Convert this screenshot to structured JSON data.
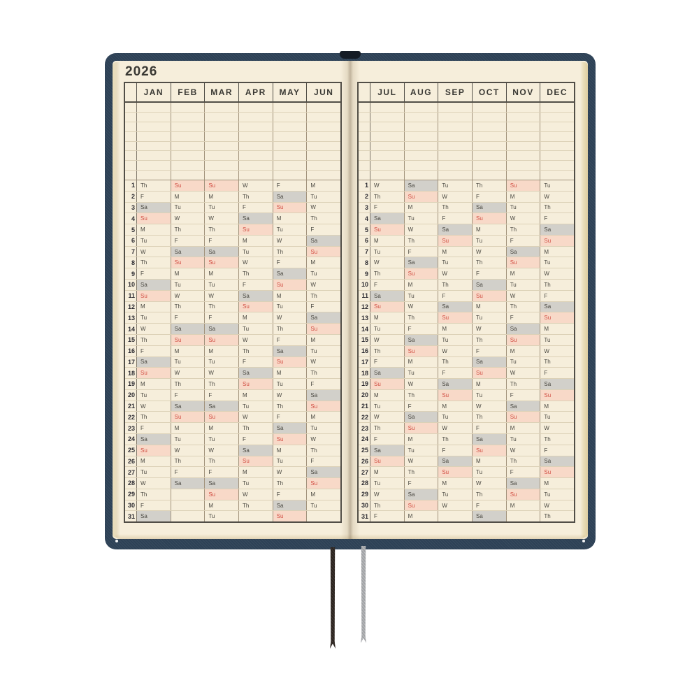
{
  "calendar": {
    "year": "2026",
    "highlight": {
      "sunday_abbr": "Su",
      "saturday_abbr": "Sa"
    },
    "day_numbers": [
      "1",
      "2",
      "3",
      "4",
      "5",
      "6",
      "7",
      "8",
      "9",
      "10",
      "11",
      "12",
      "13",
      "14",
      "15",
      "16",
      "17",
      "18",
      "19",
      "20",
      "21",
      "22",
      "23",
      "24",
      "25",
      "26",
      "27",
      "28",
      "29",
      "30",
      "31"
    ],
    "pages": [
      {
        "side": "left",
        "months": [
          {
            "label": "JAN",
            "weekdays": [
              "Th",
              "F",
              "Sa",
              "Su",
              "M",
              "Tu",
              "W",
              "Th",
              "F",
              "Sa",
              "Su",
              "M",
              "Tu",
              "W",
              "Th",
              "F",
              "Sa",
              "Su",
              "M",
              "Tu",
              "W",
              "Th",
              "F",
              "Sa",
              "Su",
              "M",
              "Tu",
              "W",
              "Th",
              "F",
              "Sa"
            ]
          },
          {
            "label": "FEB",
            "weekdays": [
              "Su",
              "M",
              "Tu",
              "W",
              "Th",
              "F",
              "Sa",
              "Su",
              "M",
              "Tu",
              "W",
              "Th",
              "F",
              "Sa",
              "Su",
              "M",
              "Tu",
              "W",
              "Th",
              "F",
              "Sa",
              "Su",
              "M",
              "Tu",
              "W",
              "Th",
              "F",
              "Sa",
              "",
              "",
              ""
            ]
          },
          {
            "label": "MAR",
            "weekdays": [
              "Su",
              "M",
              "Tu",
              "W",
              "Th",
              "F",
              "Sa",
              "Su",
              "M",
              "Tu",
              "W",
              "Th",
              "F",
              "Sa",
              "Su",
              "M",
              "Tu",
              "W",
              "Th",
              "F",
              "Sa",
              "Su",
              "M",
              "Tu",
              "W",
              "Th",
              "F",
              "Sa",
              "Su",
              "M",
              "Tu"
            ]
          },
          {
            "label": "APR",
            "weekdays": [
              "W",
              "Th",
              "F",
              "Sa",
              "Su",
              "M",
              "Tu",
              "W",
              "Th",
              "F",
              "Sa",
              "Su",
              "M",
              "Tu",
              "W",
              "Th",
              "F",
              "Sa",
              "Su",
              "M",
              "Tu",
              "W",
              "Th",
              "F",
              "Sa",
              "Su",
              "M",
              "Tu",
              "W",
              "Th",
              ""
            ]
          },
          {
            "label": "MAY",
            "weekdays": [
              "F",
              "Sa",
              "Su",
              "M",
              "Tu",
              "W",
              "Th",
              "F",
              "Sa",
              "Su",
              "M",
              "Tu",
              "W",
              "Th",
              "F",
              "Sa",
              "Su",
              "M",
              "Tu",
              "W",
              "Th",
              "F",
              "Sa",
              "Su",
              "M",
              "Tu",
              "W",
              "Th",
              "F",
              "Sa",
              "Su"
            ]
          },
          {
            "label": "JUN",
            "weekdays": [
              "M",
              "Tu",
              "W",
              "Th",
              "F",
              "Sa",
              "Su",
              "M",
              "Tu",
              "W",
              "Th",
              "F",
              "Sa",
              "Su",
              "M",
              "Tu",
              "W",
              "Th",
              "F",
              "Sa",
              "Su",
              "M",
              "Tu",
              "W",
              "Th",
              "F",
              "Sa",
              "Su",
              "M",
              "Tu",
              ""
            ]
          }
        ]
      },
      {
        "side": "right",
        "months": [
          {
            "label": "JUL",
            "weekdays": [
              "W",
              "Th",
              "F",
              "Sa",
              "Su",
              "M",
              "Tu",
              "W",
              "Th",
              "F",
              "Sa",
              "Su",
              "M",
              "Tu",
              "W",
              "Th",
              "F",
              "Sa",
              "Su",
              "M",
              "Tu",
              "W",
              "Th",
              "F",
              "Sa",
              "Su",
              "M",
              "Tu",
              "W",
              "Th",
              "F"
            ]
          },
          {
            "label": "AUG",
            "weekdays": [
              "Sa",
              "Su",
              "M",
              "Tu",
              "W",
              "Th",
              "F",
              "Sa",
              "Su",
              "M",
              "Tu",
              "W",
              "Th",
              "F",
              "Sa",
              "Su",
              "M",
              "Tu",
              "W",
              "Th",
              "F",
              "Sa",
              "Su",
              "M",
              "Tu",
              "W",
              "Th",
              "F",
              "Sa",
              "Su",
              "M"
            ]
          },
          {
            "label": "SEP",
            "weekdays": [
              "Tu",
              "W",
              "Th",
              "F",
              "Sa",
              "Su",
              "M",
              "Tu",
              "W",
              "Th",
              "F",
              "Sa",
              "Su",
              "M",
              "Tu",
              "W",
              "Th",
              "F",
              "Sa",
              "Su",
              "M",
              "Tu",
              "W",
              "Th",
              "F",
              "Sa",
              "Su",
              "M",
              "Tu",
              "W",
              ""
            ]
          },
          {
            "label": "OCT",
            "weekdays": [
              "Th",
              "F",
              "Sa",
              "Su",
              "M",
              "Tu",
              "W",
              "Th",
              "F",
              "Sa",
              "Su",
              "M",
              "Tu",
              "W",
              "Th",
              "F",
              "Sa",
              "Su",
              "M",
              "Tu",
              "W",
              "Th",
              "F",
              "Sa",
              "Su",
              "M",
              "Tu",
              "W",
              "Th",
              "F",
              "Sa"
            ]
          },
          {
            "label": "NOV",
            "weekdays": [
              "Su",
              "M",
              "Tu",
              "W",
              "Th",
              "F",
              "Sa",
              "Su",
              "M",
              "Tu",
              "W",
              "Th",
              "F",
              "Sa",
              "Su",
              "M",
              "Tu",
              "W",
              "Th",
              "F",
              "Sa",
              "Su",
              "M",
              "Tu",
              "W",
              "Th",
              "F",
              "Sa",
              "Su",
              "M",
              ""
            ]
          },
          {
            "label": "DEC",
            "weekdays": [
              "Tu",
              "W",
              "Th",
              "F",
              "Sa",
              "Su",
              "M",
              "Tu",
              "W",
              "Th",
              "F",
              "Sa",
              "Su",
              "M",
              "Tu",
              "W",
              "Th",
              "F",
              "Sa",
              "Su",
              "M",
              "Tu",
              "W",
              "Th",
              "F",
              "Sa",
              "Su",
              "M",
              "Tu",
              "W",
              "Th"
            ]
          }
        ]
      }
    ]
  },
  "colors": {
    "cover_navy": "#2d4156",
    "page_cream": "#f6eedb",
    "page_edge": "#e9ddb8",
    "grid_light": "#dcd1b7",
    "grid_month_divider": "#a2937c",
    "grid_day_divider": "#7e7669",
    "grid_dark": "#514e47",
    "text_dark": "#3a3934",
    "weekday_text": "#4a4841",
    "day_number_text": "#2d2c32",
    "sunday_bg": "#f8d9c8",
    "sunday_text": "#d25045",
    "saturday_bg": "#d2d0ca",
    "bookmark_brown": "#2b231e",
    "bookmark_gray": "#a0a2a5"
  },
  "bookmarks": [
    {
      "name": "brown-bookmark-ribbon",
      "color": "#2b231e"
    },
    {
      "name": "gray-bookmark-ribbon",
      "color": "#a0a2a5"
    }
  ]
}
